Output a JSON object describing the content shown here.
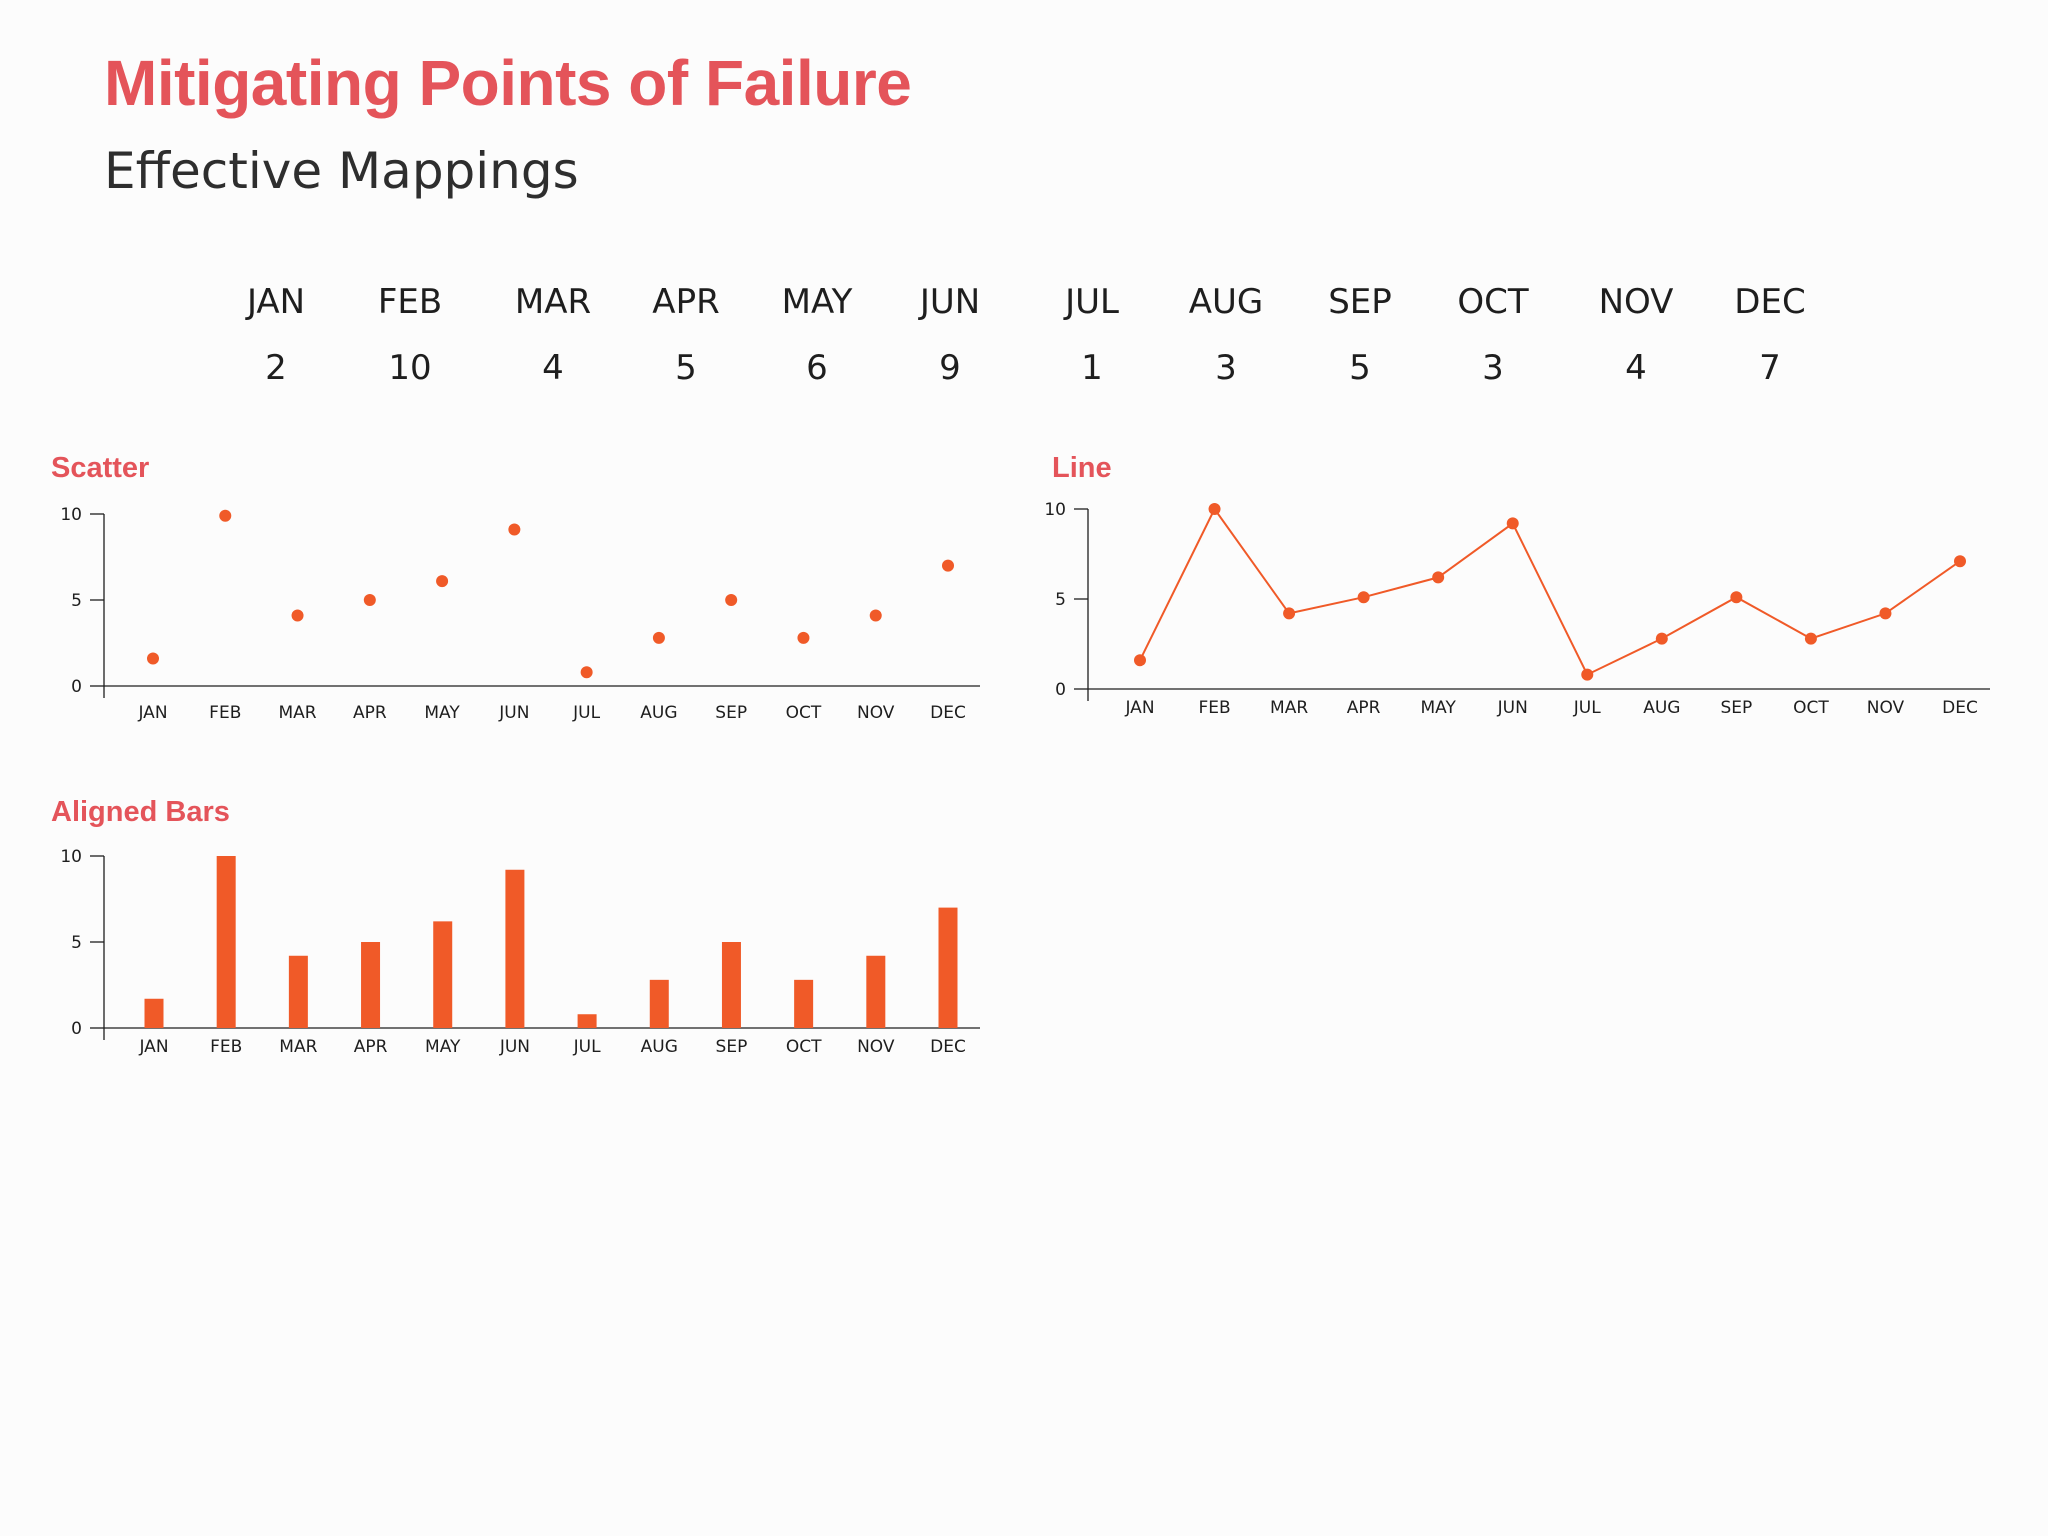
{
  "header": {
    "title": "Mitigating Points of Failure",
    "subtitle": "Effective Mappings"
  },
  "colors": {
    "title": "#e4545a",
    "series": "#f05a28",
    "text": "#1e1e1e",
    "background": "#fcfcfc"
  },
  "table": {
    "months": [
      "JAN",
      "FEB",
      "MAR",
      "APR",
      "MAY",
      "JUN",
      "JUL",
      "AUG",
      "SEP",
      "OCT",
      "NOV",
      "DEC"
    ],
    "values": [
      "2",
      "10",
      "4",
      "5",
      "6",
      "9",
      "1",
      "3",
      "5",
      "3",
      "4",
      "7"
    ]
  },
  "chart_data": [
    {
      "type": "scatter",
      "title": "Scatter",
      "categories": [
        "JAN",
        "FEB",
        "MAR",
        "APR",
        "MAY",
        "JUN",
        "JUL",
        "AUG",
        "SEP",
        "OCT",
        "NOV",
        "DEC"
      ],
      "values": [
        1.6,
        9.9,
        4.1,
        5,
        6.1,
        9.1,
        0.8,
        2.8,
        5,
        2.8,
        4.1,
        7
      ],
      "yticks": [
        0,
        5,
        10
      ],
      "ylim": [
        0,
        10
      ],
      "grid": false
    },
    {
      "type": "line",
      "title": "Line",
      "categories": [
        "JAN",
        "FEB",
        "MAR",
        "APR",
        "MAY",
        "JUN",
        "JUL",
        "AUG",
        "SEP",
        "OCT",
        "NOV",
        "DEC"
      ],
      "values": [
        1.6,
        10,
        4.2,
        5.1,
        6.2,
        9.2,
        0.8,
        2.8,
        5.1,
        2.8,
        4.2,
        7.1
      ],
      "yticks": [
        0,
        5,
        10
      ],
      "ylim": [
        0,
        10
      ],
      "grid": false
    },
    {
      "type": "bar",
      "title": "Aligned Bars",
      "categories": [
        "JAN",
        "FEB",
        "MAR",
        "APR",
        "MAY",
        "JUN",
        "JUL",
        "AUG",
        "SEP",
        "OCT",
        "NOV",
        "DEC"
      ],
      "values": [
        1.7,
        10,
        4.2,
        5,
        6.2,
        9.2,
        0.8,
        2.8,
        5,
        2.8,
        4.2,
        7
      ],
      "yticks": [
        0,
        5,
        10
      ],
      "ylim": [
        0,
        10
      ],
      "grid": false
    }
  ]
}
